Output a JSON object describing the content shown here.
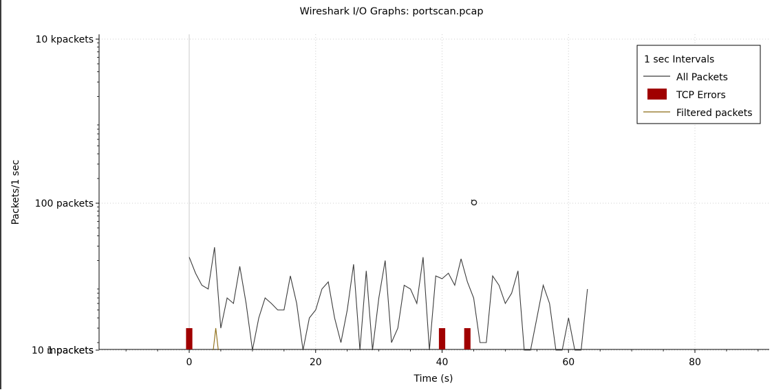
{
  "window": {
    "title": "Wireshark I/O Graphs: portscan.pcap"
  },
  "chart_data": {
    "type": "line",
    "title": "Wireshark I/O Graphs: portscan.pcap",
    "xlabel": "Time (s)",
    "ylabel": "Packets/1 sec",
    "yscale": "log",
    "xlim": [
      -14,
      91
    ],
    "ylim": [
      0.0003,
      10000
    ],
    "x_ticks": [
      0,
      20,
      40,
      60,
      80
    ],
    "x_tick_labels": [
      "0",
      "20",
      "40",
      "60",
      "80"
    ],
    "y_ticks": [
      10000,
      100,
      1,
      0.01
    ],
    "y_tick_labels": [
      "10 kpackets",
      "100 packets",
      "1 packets",
      "10 mpackets"
    ],
    "grid": true,
    "legend": {
      "title": "1 sec Intervals",
      "position": "top-right",
      "entries": [
        "All Packets",
        "TCP Errors",
        "Filtered packets"
      ]
    },
    "colors": {
      "all": "#3a3a3a",
      "errors": "#a00000",
      "filtered": "#8b6a10",
      "grid": "#cccccc"
    },
    "series": [
      {
        "name": "All Packets",
        "style": "line",
        "x": [
          0,
          1,
          2,
          3,
          4,
          5,
          6,
          7,
          8,
          9,
          10,
          11,
          12,
          13,
          14,
          15,
          16,
          17,
          18,
          19,
          20,
          21,
          22,
          23,
          24,
          25,
          26,
          27,
          28,
          29,
          30,
          31,
          32,
          33,
          34,
          35,
          36,
          37,
          38,
          39,
          40,
          41,
          42,
          43,
          44,
          45,
          46,
          47,
          48,
          49,
          50,
          51,
          52,
          53,
          54,
          55,
          56,
          57,
          58,
          59,
          60,
          61,
          62,
          63
        ],
        "values": [
          22,
          14,
          10,
          9,
          29,
          3,
          7,
          6,
          17,
          6,
          0,
          4,
          7,
          6,
          5,
          5,
          13,
          6,
          0,
          4,
          5,
          9,
          11,
          4,
          2,
          5,
          18,
          0,
          15,
          0,
          7,
          20,
          2,
          3,
          10,
          9,
          6,
          22,
          1,
          13,
          12,
          14,
          10,
          21,
          11,
          7,
          2,
          2,
          13,
          10,
          6,
          8,
          15,
          0,
          0,
          4,
          10,
          6,
          0,
          0,
          4,
          0,
          0,
          9
        ]
      },
      {
        "name": "TCP Errors",
        "style": "bar",
        "x": [
          0,
          40,
          44
        ],
        "values": [
          3,
          3,
          3
        ]
      },
      {
        "name": "Filtered packets",
        "style": "line",
        "x": [
          3.8,
          4.2,
          4.6
        ],
        "values": [
          0.0003,
          3,
          0.0003
        ]
      }
    ]
  }
}
